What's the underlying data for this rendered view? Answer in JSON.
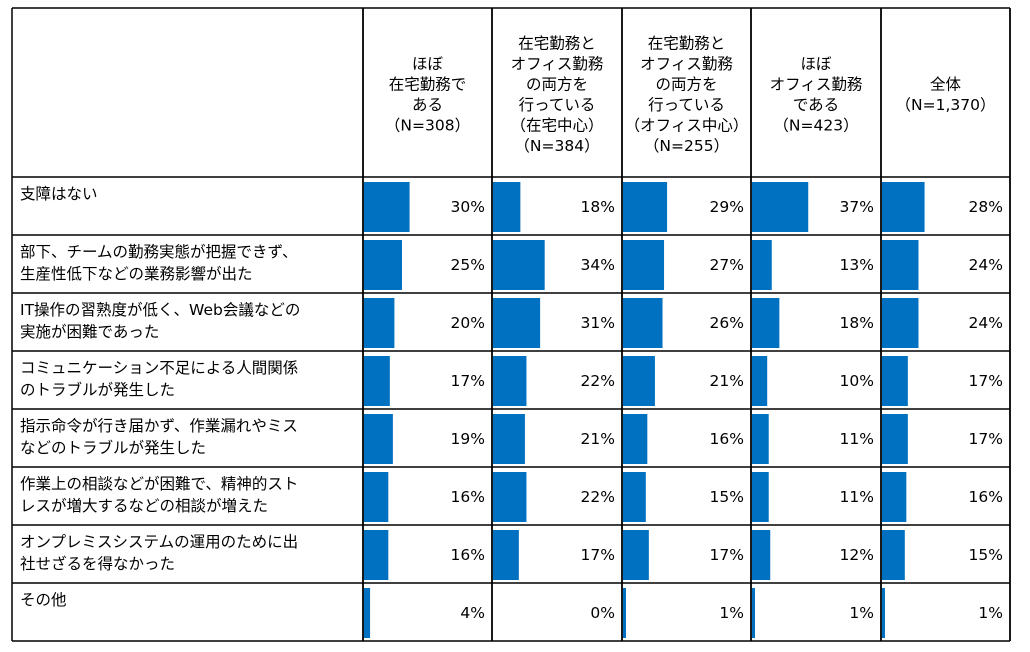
{
  "chart_data": {
    "type": "bar",
    "layout": "table-of-horizontal-bars",
    "value_unit": "%",
    "bar_color": "#0070C0",
    "columns": [
      {
        "header_lines": [
          "ほぼ",
          "在宅勤務で",
          "ある",
          "（N=308）"
        ]
      },
      {
        "header_lines": [
          "在宅勤務と",
          "オフィス勤務",
          "の両方を",
          "行っている",
          "（在宅中心）",
          "（N=384）"
        ]
      },
      {
        "header_lines": [
          "在宅勤務と",
          "オフィス勤務",
          "の両方を",
          "行っている",
          "（オフィス中心）",
          "（N=255）"
        ]
      },
      {
        "header_lines": [
          "ほぼ",
          "オフィス勤務",
          "である",
          "（N=423）"
        ]
      },
      {
        "header_lines": [
          "全体",
          "（N=1,370）"
        ]
      }
    ],
    "rows": [
      {
        "label_lines": [
          "支障はない"
        ],
        "values": [
          30,
          18,
          29,
          37,
          28
        ]
      },
      {
        "label_lines": [
          "部下、チームの勤務実態が把握できず、",
          "生産性低下などの業務影響が出た"
        ],
        "values": [
          25,
          34,
          27,
          13,
          24
        ]
      },
      {
        "label_lines": [
          "IT操作の習熟度が低く、Web会議などの",
          "実施が困難であった"
        ],
        "values": [
          20,
          31,
          26,
          18,
          24
        ]
      },
      {
        "label_lines": [
          "コミュニケーション不足による人間関係",
          "のトラブルが発生した"
        ],
        "values": [
          17,
          22,
          21,
          10,
          17
        ]
      },
      {
        "label_lines": [
          "指示命令が行き届かず、作業漏れやミス",
          "などのトラブルが発生した"
        ],
        "values": [
          19,
          21,
          16,
          11,
          17
        ]
      },
      {
        "label_lines": [
          "作業上の相談などが困難で、精神的スト",
          "レスが増大するなどの相談が増えた"
        ],
        "values": [
          16,
          22,
          15,
          11,
          16
        ]
      },
      {
        "label_lines": [
          "オンプレミスシステムの運用のために出",
          "社せざるを得なかった"
        ],
        "values": [
          16,
          17,
          17,
          12,
          15
        ]
      },
      {
        "label_lines": [
          "その他"
        ],
        "values": [
          4,
          0,
          1,
          1,
          1
        ]
      }
    ]
  }
}
